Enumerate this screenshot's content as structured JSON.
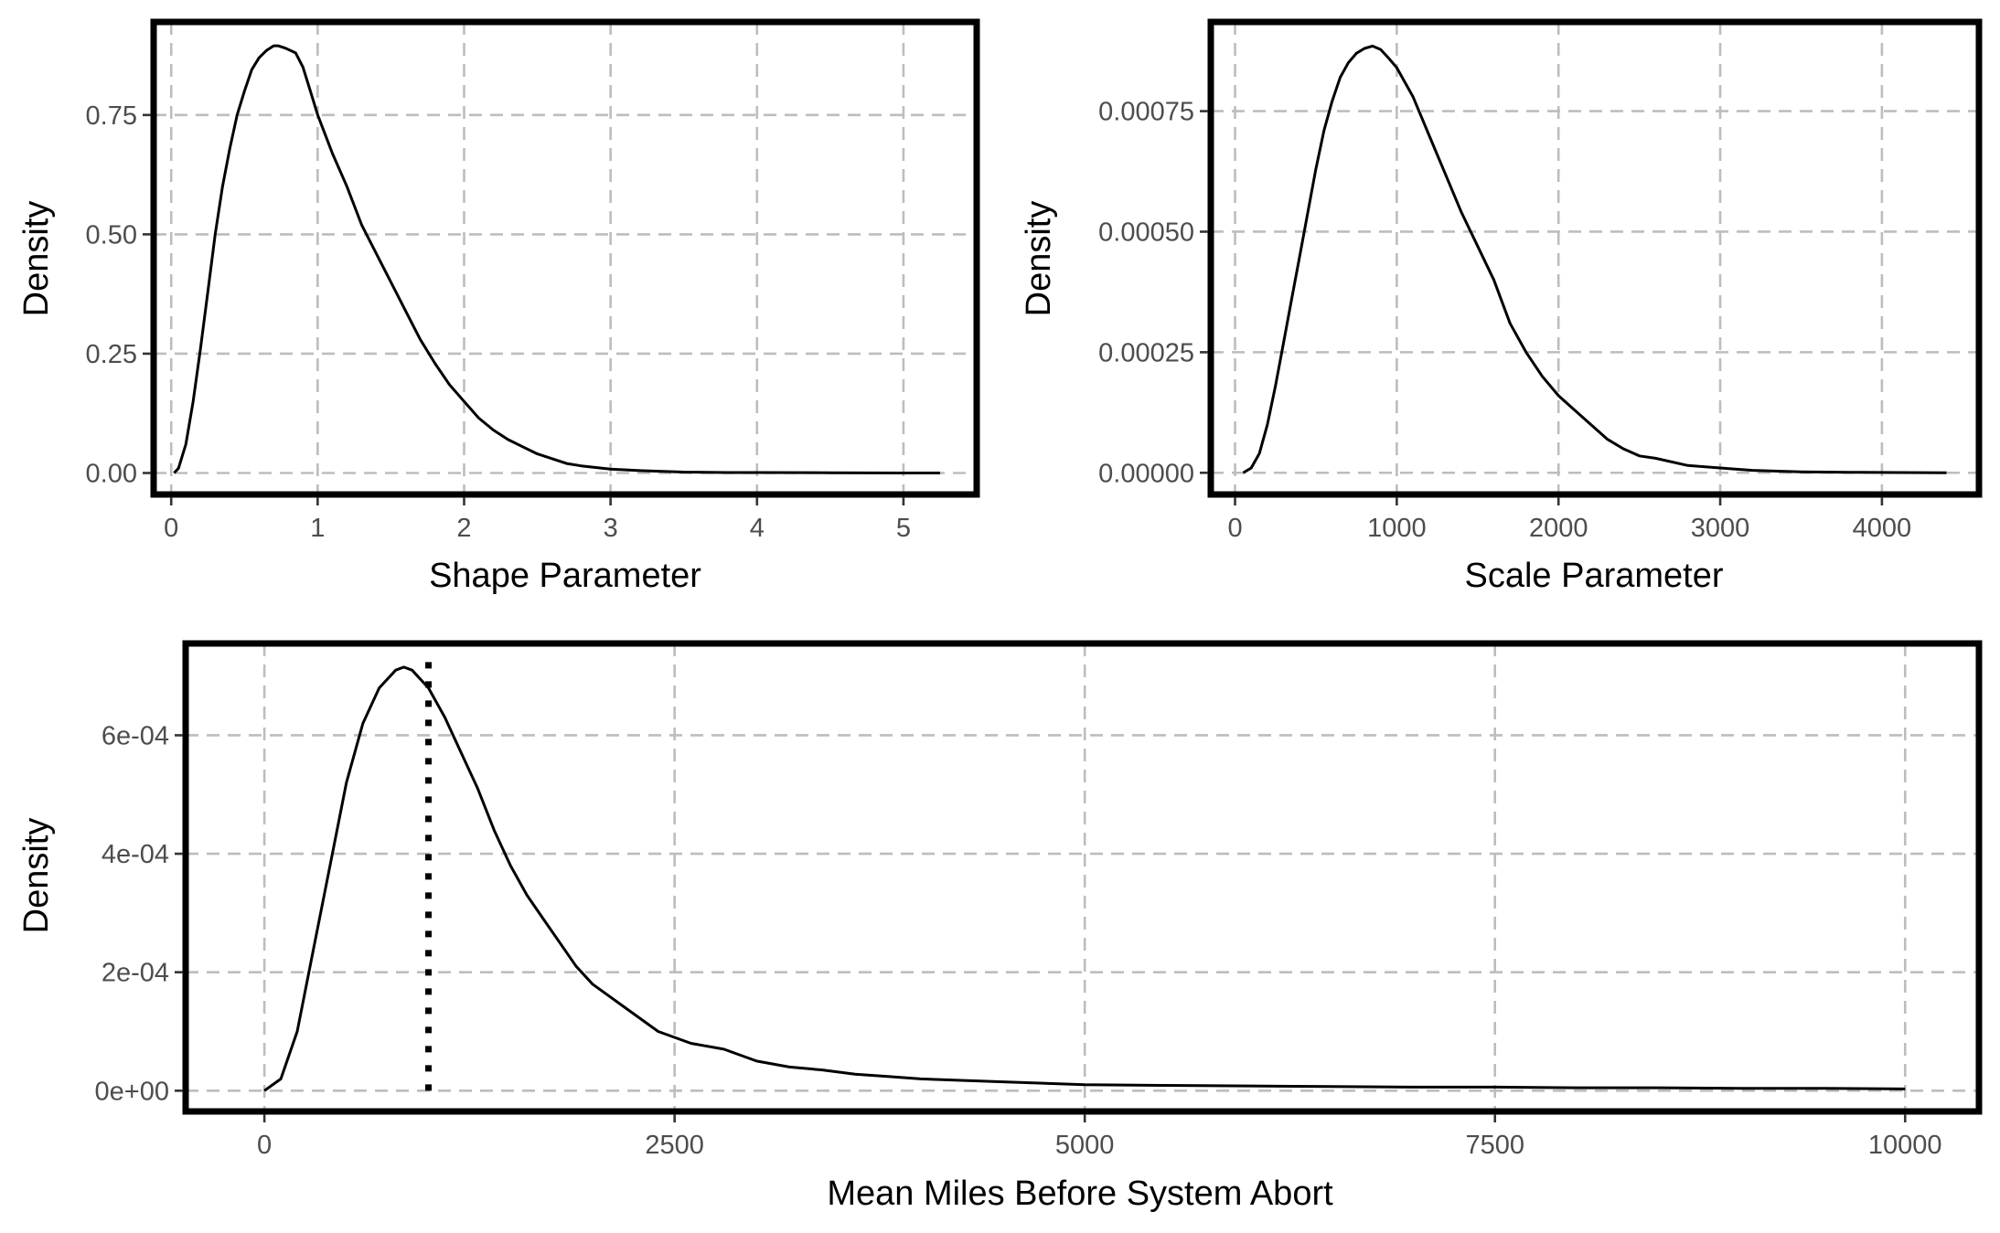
{
  "chart_data": [
    {
      "type": "line",
      "title": "",
      "xlabel": "Shape Parameter",
      "ylabel": "Density",
      "xlim": [
        -0.12,
        5.5
      ],
      "ylim": [
        -0.045,
        0.945
      ],
      "x_ticks": [
        0,
        1,
        2,
        3,
        4,
        5
      ],
      "x_tick_labels": [
        "0",
        "1",
        "2",
        "3",
        "4",
        "5"
      ],
      "y_ticks": [
        0,
        0.25,
        0.5,
        0.75
      ],
      "y_tick_labels": [
        "0.00",
        "0.25",
        "0.50",
        "0.75"
      ],
      "grid": true,
      "legend": "none",
      "series": [
        {
          "x": [
            0.02,
            0.05,
            0.1,
            0.15,
            0.2,
            0.25,
            0.3,
            0.35,
            0.4,
            0.45,
            0.5,
            0.55,
            0.6,
            0.65,
            0.7,
            0.73,
            0.78,
            0.85,
            0.9,
            0.95,
            1.0,
            1.05,
            1.1,
            1.2,
            1.3,
            1.4,
            1.5,
            1.6,
            1.7,
            1.8,
            1.9,
            2.0,
            2.1,
            2.2,
            2.3,
            2.4,
            2.5,
            2.6,
            2.7,
            2.8,
            3.0,
            3.2,
            3.5,
            3.8,
            4.0,
            4.5,
            5.0,
            5.25
          ],
          "y": [
            0.0,
            0.01,
            0.06,
            0.15,
            0.26,
            0.38,
            0.5,
            0.6,
            0.68,
            0.75,
            0.8,
            0.845,
            0.87,
            0.885,
            0.895,
            0.895,
            0.89,
            0.88,
            0.85,
            0.8,
            0.75,
            0.71,
            0.67,
            0.6,
            0.52,
            0.46,
            0.4,
            0.34,
            0.28,
            0.23,
            0.185,
            0.15,
            0.115,
            0.09,
            0.07,
            0.055,
            0.04,
            0.03,
            0.02,
            0.015,
            0.008,
            0.005,
            0.002,
            0.001,
            0.001,
            0.0005,
            0.0,
            0.0
          ]
        }
      ]
    },
    {
      "type": "line",
      "title": "",
      "xlabel": "Scale Parameter",
      "ylabel": "Density",
      "xlim": [
        -150,
        4600
      ],
      "ylim": [
        -4.5e-05,
        0.000935
      ],
      "x_ticks": [
        0,
        1000,
        2000,
        3000,
        4000
      ],
      "x_tick_labels": [
        "0",
        "1000",
        "2000",
        "3000",
        "4000"
      ],
      "y_ticks": [
        0,
        0.00025,
        0.0005,
        0.00075
      ],
      "y_tick_labels": [
        "0.00000",
        "0.00025",
        "0.00050",
        "0.00075"
      ],
      "grid": true,
      "legend": "none",
      "series": [
        {
          "x": [
            50,
            100,
            150,
            200,
            250,
            300,
            350,
            400,
            450,
            500,
            550,
            600,
            650,
            700,
            750,
            800,
            850,
            900,
            950,
            1000,
            1050,
            1100,
            1200,
            1300,
            1400,
            1500,
            1600,
            1700,
            1800,
            1900,
            2000,
            2100,
            2200,
            2300,
            2400,
            2500,
            2600,
            2800,
            3000,
            3200,
            3500,
            3800,
            4100,
            4400
          ],
          "y": [
            0.0,
            1e-05,
            4e-05,
            0.0001,
            0.00018,
            0.00027,
            0.00036,
            0.00045,
            0.00054,
            0.00063,
            0.00071,
            0.00077,
            0.00082,
            0.00085,
            0.00087,
            0.00088,
            0.000885,
            0.000878,
            0.00086,
            0.00084,
            0.00081,
            0.00078,
            0.0007,
            0.00062,
            0.00054,
            0.00047,
            0.0004,
            0.00031,
            0.00025,
            0.0002,
            0.00016,
            0.00013,
            0.0001,
            7e-05,
            5e-05,
            3.5e-05,
            3e-05,
            1.5e-05,
            1e-05,
            5e-06,
            2e-06,
            1e-06,
            5e-07,
            0.0
          ]
        }
      ]
    },
    {
      "type": "line",
      "title": "",
      "xlabel": "Mean Miles Before System Abort",
      "ylabel": "Density",
      "xlim": [
        -480,
        10450
      ],
      "ylim": [
        -3.5e-05,
        0.000755
      ],
      "x_ticks": [
        0,
        2500,
        5000,
        7500,
        10000
      ],
      "x_tick_labels": [
        "0",
        "2500",
        "5000",
        "7500",
        "10000"
      ],
      "y_ticks": [
        0,
        0.0002,
        0.0004,
        0.0006
      ],
      "y_tick_labels": [
        "0e+00",
        "2e-04",
        "4e-04",
        "6e-04"
      ],
      "grid": true,
      "legend": "none",
      "reference_line_x": 1000,
      "series": [
        {
          "x": [
            0,
            100,
            200,
            300,
            400,
            500,
            600,
            700,
            800,
            850,
            900,
            1000,
            1100,
            1200,
            1300,
            1400,
            1500,
            1600,
            1700,
            1800,
            1900,
            2000,
            2200,
            2400,
            2600,
            2800,
            3000,
            3200,
            3400,
            3600,
            3800,
            4000,
            4500,
            5000,
            5500,
            6000,
            6500,
            7000,
            7500,
            8000,
            8500,
            9000,
            9500,
            10000
          ],
          "y": [
            0.0,
            2e-05,
            0.0001,
            0.00024,
            0.00038,
            0.00052,
            0.00062,
            0.00068,
            0.00071,
            0.000715,
            0.00071,
            0.00068,
            0.00063,
            0.00057,
            0.00051,
            0.00044,
            0.00038,
            0.00033,
            0.00029,
            0.00025,
            0.00021,
            0.00018,
            0.00014,
            0.0001,
            8e-05,
            7e-05,
            5e-05,
            4e-05,
            3.5e-05,
            2.8e-05,
            2.4e-05,
            2e-05,
            1.5e-05,
            1e-05,
            9e-06,
            8e-06,
            7e-06,
            6e-06,
            6e-06,
            5e-06,
            5e-06,
            4e-06,
            4e-06,
            3e-06
          ]
        }
      ]
    }
  ]
}
